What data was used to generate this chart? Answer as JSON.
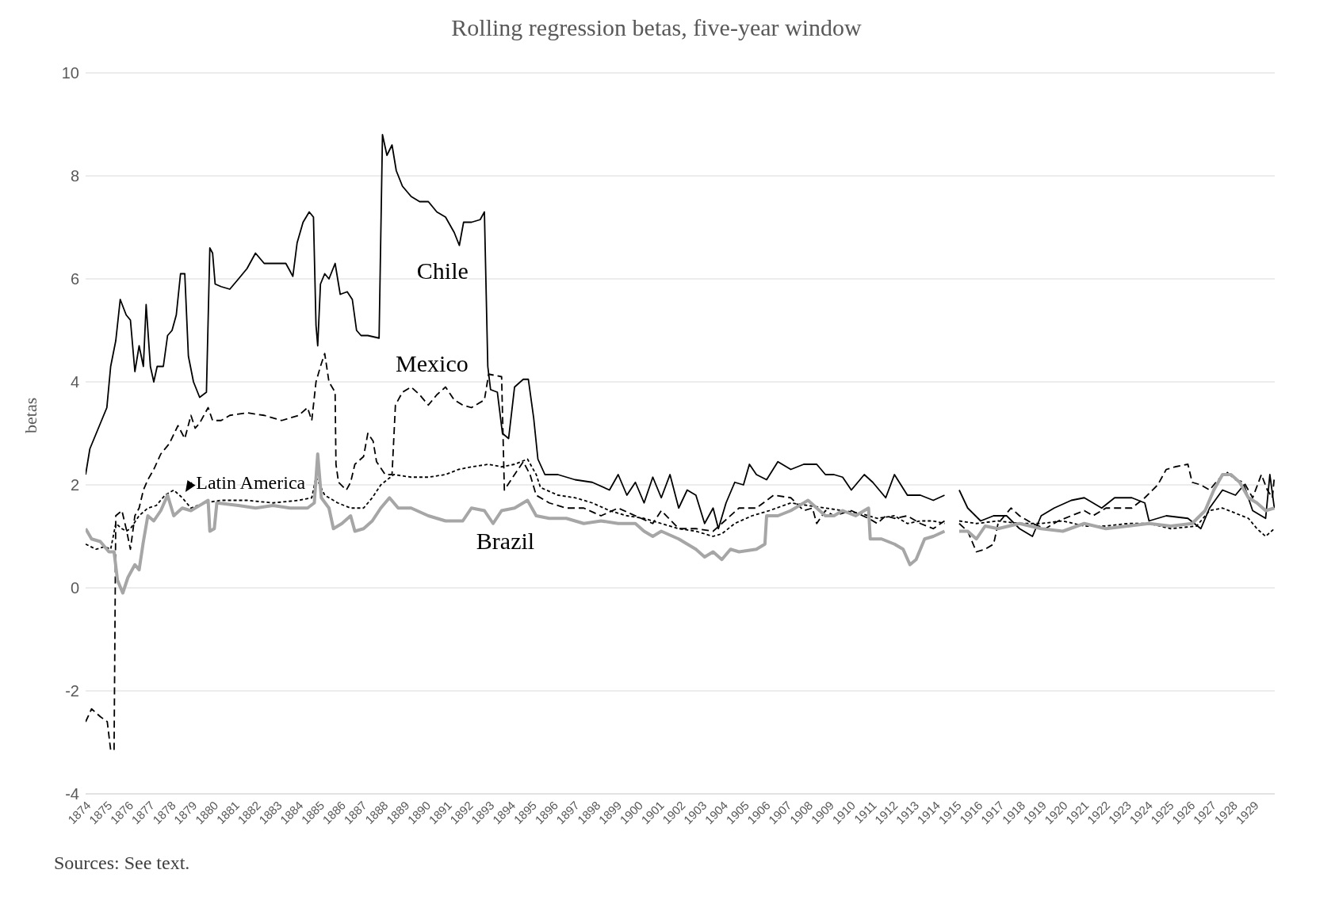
{
  "chart_data": {
    "type": "line",
    "title": "Rolling regression betas, five-year window",
    "ylabel": "betas",
    "annotations": [
      "Sources: See text."
    ],
    "xlim": [
      1874,
      1930
    ],
    "xticks": [
      1874,
      1875,
      1876,
      1877,
      1878,
      1879,
      1880,
      1881,
      1882,
      1883,
      1884,
      1885,
      1886,
      1887,
      1888,
      1889,
      1890,
      1891,
      1892,
      1893,
      1894,
      1895,
      1896,
      1897,
      1898,
      1899,
      1900,
      1901,
      1902,
      1903,
      1904,
      1905,
      1906,
      1907,
      1908,
      1909,
      1910,
      1911,
      1912,
      1913,
      1914,
      1915,
      1916,
      1917,
      1918,
      1919,
      1920,
      1921,
      1922,
      1923,
      1924,
      1925,
      1926,
      1927,
      1928,
      1929
    ],
    "ylim": [
      -4,
      10
    ],
    "yticks": [
      -4,
      -2,
      0,
      2,
      4,
      6,
      8,
      10
    ],
    "grid": "y",
    "series": [
      {
        "name": "Chile",
        "color": "#000000",
        "line_style": "solid",
        "x": [
          1874.0,
          1874.2,
          1874.7,
          1875.0,
          1875.18,
          1875.42,
          1875.63,
          1875.91,
          1876.11,
          1876.32,
          1876.52,
          1876.72,
          1876.85,
          1877.05,
          1877.21,
          1877.37,
          1877.66,
          1877.86,
          1878.07,
          1878.27,
          1878.47,
          1878.67,
          1878.84,
          1879.08,
          1879.37,
          1879.69,
          1879.85,
          1879.98,
          1880.1,
          1880.38,
          1880.79,
          1881.2,
          1881.6,
          1882.0,
          1882.41,
          1882.82,
          1883.43,
          1883.76,
          1883.96,
          1884.24,
          1884.53,
          1884.73,
          1884.85,
          1884.93,
          1885.06,
          1885.26,
          1885.46,
          1885.75,
          1885.99,
          1886.32,
          1886.56,
          1886.76,
          1886.97,
          1887.29,
          1887.82,
          1887.98,
          1888.19,
          1888.43,
          1888.63,
          1888.92,
          1889.33,
          1889.73,
          1890.14,
          1890.54,
          1890.95,
          1891.36,
          1891.6,
          1891.8,
          1892.17,
          1892.58,
          1892.78,
          1892.94,
          1893.07,
          1893.39,
          1893.63,
          1893.92,
          1894.2,
          1894.61,
          1894.85,
          1895.1,
          1895.3,
          1895.63,
          1896.24,
          1897.05,
          1897.86,
          1898.67,
          1899.08,
          1899.49,
          1899.89,
          1900.3,
          1900.71,
          1901.11,
          1901.52,
          1901.93,
          1902.33,
          1902.74,
          1903.15,
          1903.55,
          1903.8,
          1904.16,
          1904.57,
          1904.98,
          1905.26,
          1905.59,
          1906.07,
          1906.6,
          1907.21,
          1907.82,
          1908.43,
          1908.84,
          1909.24,
          1909.65,
          1910.06,
          1910.67,
          1911.07,
          1911.68,
          1912.09,
          1912.7,
          1913.31,
          1913.92,
          1914.45,
          1914.8,
          1915.14,
          1915.54,
          1916.15,
          1916.76,
          1917.37,
          1917.98,
          1918.59,
          1919.0,
          1919.61,
          1920.42,
          1921.03,
          1921.85,
          1922.46,
          1923.27,
          1923.88,
          1924.08,
          1924.89,
          1925.91,
          1926.52,
          1926.93,
          1927.54,
          1928.15,
          1928.55,
          1928.96,
          1929.57,
          1929.77,
          1929.98
        ],
        "values": [
          2.2,
          2.7,
          3.2,
          3.5,
          4.3,
          4.8,
          5.6,
          5.3,
          5.2,
          4.2,
          4.7,
          4.3,
          5.5,
          4.3,
          4.0,
          4.3,
          4.3,
          4.9,
          5.0,
          5.3,
          6.1,
          6.1,
          4.5,
          4.0,
          3.7,
          3.8,
          6.6,
          6.5,
          5.9,
          5.85,
          5.8,
          6.0,
          6.2,
          6.5,
          6.3,
          6.3,
          6.3,
          6.05,
          6.7,
          7.1,
          7.3,
          7.2,
          5.1,
          4.7,
          5.9,
          6.1,
          6.0,
          6.3,
          5.7,
          5.75,
          5.6,
          5.0,
          4.9,
          4.9,
          4.85,
          8.8,
          8.4,
          8.6,
          8.1,
          7.8,
          7.6,
          7.5,
          7.5,
          7.3,
          7.2,
          6.9,
          6.65,
          7.1,
          7.1,
          7.15,
          7.3,
          4.3,
          3.85,
          3.8,
          3.0,
          2.9,
          3.9,
          4.05,
          4.05,
          3.3,
          2.5,
          2.2,
          2.2,
          2.1,
          2.05,
          1.9,
          2.2,
          1.8,
          2.05,
          1.65,
          2.15,
          1.75,
          2.2,
          1.55,
          1.9,
          1.8,
          1.25,
          1.55,
          1.15,
          1.65,
          2.05,
          2.0,
          2.4,
          2.2,
          2.1,
          2.45,
          2.3,
          2.4,
          2.4,
          2.2,
          2.2,
          2.15,
          1.9,
          2.2,
          2.05,
          1.75,
          2.2,
          1.8,
          1.8,
          1.7,
          1.8,
          null,
          1.9,
          1.55,
          1.3,
          1.4,
          1.4,
          1.15,
          1.0,
          1.4,
          1.55,
          1.7,
          1.75,
          1.55,
          1.75,
          1.75,
          1.65,
          1.3,
          1.4,
          1.35,
          1.15,
          1.55,
          1.9,
          1.8,
          2.0,
          1.5,
          1.35,
          2.2,
          1.55
        ]
      },
      {
        "name": "Mexico",
        "color": "#000000",
        "line_style": "dashed",
        "x": [
          1874.0,
          1874.28,
          1874.69,
          1875.02,
          1875.18,
          1875.34,
          1875.42,
          1875.71,
          1875.91,
          1876.11,
          1876.32,
          1876.52,
          1876.72,
          1876.93,
          1877.21,
          1877.54,
          1877.94,
          1878.35,
          1878.67,
          1878.96,
          1879.16,
          1879.37,
          1879.77,
          1879.98,
          1880.38,
          1880.79,
          1881.6,
          1882.41,
          1883.23,
          1884.04,
          1884.45,
          1884.65,
          1884.85,
          1885.06,
          1885.26,
          1885.46,
          1885.75,
          1885.79,
          1885.91,
          1886.28,
          1886.48,
          1886.68,
          1887.09,
          1887.29,
          1887.54,
          1887.7,
          1888.11,
          1888.43,
          1888.59,
          1888.92,
          1889.33,
          1889.73,
          1890.14,
          1890.54,
          1890.95,
          1891.36,
          1891.76,
          1892.17,
          1892.78,
          1892.98,
          1893.59,
          1893.72,
          1893.88,
          1894.2,
          1894.61,
          1894.93,
          1895.22,
          1895.83,
          1896.64,
          1897.46,
          1898.27,
          1899.08,
          1899.89,
          1900.71,
          1901.11,
          1901.93,
          1902.74,
          1903.55,
          1903.96,
          1904.77,
          1905.59,
          1906.4,
          1907.21,
          1907.82,
          1908.23,
          1908.43,
          1908.84,
          1909.24,
          1910.06,
          1910.87,
          1911.28,
          1911.68,
          1912.09,
          1912.7,
          1913.31,
          1913.92,
          1914.45,
          1914.8,
          1915.14,
          1915.54,
          1915.95,
          1916.36,
          1916.76,
          1916.97,
          1917.58,
          1917.98,
          1918.59,
          1919.2,
          1919.81,
          1920.42,
          1921.03,
          1921.44,
          1922.05,
          1922.66,
          1923.27,
          1923.88,
          1924.49,
          1924.89,
          1925.3,
          1925.91,
          1926.11,
          1926.52,
          1926.93,
          1927.33,
          1927.74,
          1928.15,
          1928.55,
          1928.96,
          1929.37,
          1929.65,
          1929.89,
          1929.98
        ],
        "values": [
          -2.6,
          -2.35,
          -2.5,
          -2.6,
          -3.15,
          -3.15,
          1.4,
          1.5,
          1.15,
          0.75,
          1.4,
          1.55,
          1.9,
          2.1,
          2.3,
          2.6,
          2.8,
          3.15,
          2.9,
          3.35,
          3.1,
          3.2,
          3.5,
          3.25,
          3.25,
          3.35,
          3.4,
          3.35,
          3.25,
          3.35,
          3.5,
          3.25,
          4.0,
          4.3,
          4.55,
          4.0,
          3.8,
          2.4,
          2.05,
          1.9,
          2.05,
          2.4,
          2.55,
          3.0,
          2.85,
          2.45,
          2.2,
          2.2,
          3.55,
          3.8,
          3.9,
          3.75,
          3.55,
          3.75,
          3.9,
          3.65,
          3.55,
          3.5,
          3.65,
          4.15,
          4.1,
          1.9,
          2.0,
          2.2,
          2.45,
          2.2,
          1.8,
          1.65,
          1.55,
          1.55,
          1.4,
          1.55,
          1.4,
          1.25,
          1.5,
          1.15,
          1.15,
          1.1,
          1.25,
          1.55,
          1.55,
          1.8,
          1.75,
          1.5,
          1.55,
          1.25,
          1.5,
          1.4,
          1.5,
          1.35,
          1.25,
          1.4,
          1.35,
          1.4,
          1.25,
          1.15,
          1.3,
          null,
          1.25,
          1.1,
          0.7,
          0.75,
          0.85,
          1.25,
          1.55,
          1.4,
          1.25,
          1.15,
          1.3,
          1.4,
          1.5,
          1.4,
          1.55,
          1.55,
          1.55,
          1.75,
          2.0,
          2.3,
          2.35,
          2.4,
          2.05,
          2.0,
          1.9,
          2.1,
          2.25,
          2.1,
          2.05,
          1.75,
          2.2,
          1.9,
          1.75,
          2.15
        ]
      },
      {
        "name": "Latin America",
        "color": "#000000",
        "line_style": "dotted",
        "x": [
          1874.0,
          1874.49,
          1874.89,
          1875.18,
          1875.42,
          1875.71,
          1875.91,
          1876.11,
          1876.52,
          1876.93,
          1877.33,
          1877.74,
          1878.15,
          1878.55,
          1878.96,
          1879.57,
          1880.38,
          1881.6,
          1882.82,
          1884.04,
          1884.65,
          1884.85,
          1885.26,
          1885.87,
          1886.48,
          1887.09,
          1887.5,
          1887.9,
          1888.51,
          1889.33,
          1890.14,
          1890.95,
          1891.56,
          1892.17,
          1892.98,
          1893.59,
          1894.2,
          1894.81,
          1895.22,
          1895.42,
          1896.24,
          1897.05,
          1897.86,
          1898.67,
          1899.49,
          1900.3,
          1901.11,
          1901.93,
          1902.74,
          1903.55,
          1903.96,
          1904.57,
          1905.38,
          1906.2,
          1907.21,
          1908.02,
          1908.84,
          1909.65,
          1910.46,
          1911.28,
          1912.09,
          1912.7,
          1913.31,
          1913.92,
          1914.45,
          1914.8,
          1915.14,
          1915.95,
          1916.97,
          1917.98,
          1919.0,
          1920.02,
          1921.03,
          1922.05,
          1923.07,
          1924.08,
          1925.1,
          1926.32,
          1926.93,
          1927.54,
          1928.15,
          1928.76,
          1929.16,
          1929.57,
          1929.98
        ],
        "values": [
          0.85,
          0.75,
          0.8,
          0.75,
          1.25,
          1.15,
          1.1,
          1.15,
          1.4,
          1.55,
          1.6,
          1.8,
          1.9,
          1.75,
          1.55,
          1.65,
          1.7,
          1.7,
          1.65,
          1.7,
          1.75,
          2.15,
          1.8,
          1.65,
          1.55,
          1.55,
          1.75,
          2.0,
          2.2,
          2.15,
          2.15,
          2.2,
          2.3,
          2.35,
          2.4,
          2.35,
          2.4,
          2.5,
          2.2,
          1.95,
          1.8,
          1.75,
          1.65,
          1.5,
          1.4,
          1.35,
          1.25,
          1.15,
          1.1,
          1.0,
          1.05,
          1.25,
          1.4,
          1.5,
          1.65,
          1.6,
          1.55,
          1.5,
          1.45,
          1.35,
          1.4,
          1.25,
          1.3,
          1.3,
          1.25,
          null,
          1.3,
          1.25,
          1.3,
          1.25,
          1.25,
          1.3,
          1.2,
          1.2,
          1.25,
          1.25,
          1.15,
          1.2,
          1.5,
          1.55,
          1.45,
          1.35,
          1.15,
          1.0,
          1.15
        ]
      },
      {
        "name": "Brazil",
        "color": "#a6a6a6",
        "line_style": "solid",
        "x": [
          1874.0,
          1874.28,
          1874.69,
          1875.1,
          1875.34,
          1875.5,
          1875.75,
          1875.99,
          1876.32,
          1876.52,
          1876.72,
          1876.93,
          1877.21,
          1877.54,
          1877.86,
          1878.15,
          1878.55,
          1878.96,
          1879.57,
          1879.77,
          1879.85,
          1880.06,
          1880.18,
          1881.2,
          1882.01,
          1882.82,
          1883.63,
          1884.45,
          1884.77,
          1884.93,
          1885.1,
          1885.46,
          1885.67,
          1886.07,
          1886.48,
          1886.68,
          1887.09,
          1887.5,
          1887.9,
          1888.31,
          1888.72,
          1889.33,
          1890.14,
          1890.95,
          1891.76,
          1892.17,
          1892.78,
          1893.19,
          1893.59,
          1894.2,
          1894.81,
          1895.22,
          1895.83,
          1896.64,
          1897.46,
          1898.27,
          1899.08,
          1899.89,
          1900.3,
          1900.71,
          1901.11,
          1901.93,
          1902.74,
          1903.15,
          1903.55,
          1903.96,
          1904.37,
          1904.77,
          1905.59,
          1905.99,
          1906.07,
          1906.6,
          1907.21,
          1908.02,
          1908.43,
          1908.84,
          1909.24,
          1909.65,
          1910.26,
          1910.87,
          1910.95,
          1911.48,
          1912.09,
          1912.5,
          1912.82,
          1913.11,
          1913.51,
          1913.92,
          1914.45,
          1914.8,
          1915.14,
          1915.54,
          1915.95,
          1916.36,
          1916.97,
          1917.98,
          1919.0,
          1920.02,
          1921.03,
          1922.05,
          1923.07,
          1924.08,
          1925.1,
          1926.11,
          1926.72,
          1927.13,
          1927.54,
          1927.94,
          1928.35,
          1928.76,
          1929.16,
          1929.57,
          1929.98
        ],
        "values": [
          1.15,
          0.95,
          0.9,
          0.7,
          0.7,
          0.15,
          -0.1,
          0.2,
          0.45,
          0.35,
          0.9,
          1.4,
          1.3,
          1.5,
          1.8,
          1.4,
          1.55,
          1.5,
          1.65,
          1.7,
          1.1,
          1.15,
          1.65,
          1.6,
          1.55,
          1.6,
          1.55,
          1.55,
          1.65,
          2.6,
          1.75,
          1.55,
          1.15,
          1.25,
          1.4,
          1.1,
          1.15,
          1.3,
          1.55,
          1.75,
          1.55,
          1.55,
          1.4,
          1.3,
          1.3,
          1.55,
          1.5,
          1.25,
          1.5,
          1.55,
          1.7,
          1.4,
          1.35,
          1.35,
          1.25,
          1.3,
          1.25,
          1.25,
          1.1,
          1.0,
          1.1,
          0.95,
          0.75,
          0.6,
          0.7,
          0.55,
          0.75,
          0.7,
          0.75,
          0.85,
          1.4,
          1.4,
          1.5,
          1.7,
          1.55,
          1.4,
          1.4,
          1.5,
          1.4,
          1.55,
          0.95,
          0.95,
          0.85,
          0.75,
          0.45,
          0.55,
          0.95,
          1.0,
          1.1,
          null,
          1.1,
          1.1,
          0.95,
          1.2,
          1.15,
          1.25,
          1.15,
          1.1,
          1.25,
          1.15,
          1.2,
          1.25,
          1.2,
          1.25,
          1.5,
          1.9,
          2.2,
          2.2,
          2.05,
          1.75,
          1.65,
          1.5,
          1.55
        ]
      }
    ]
  }
}
